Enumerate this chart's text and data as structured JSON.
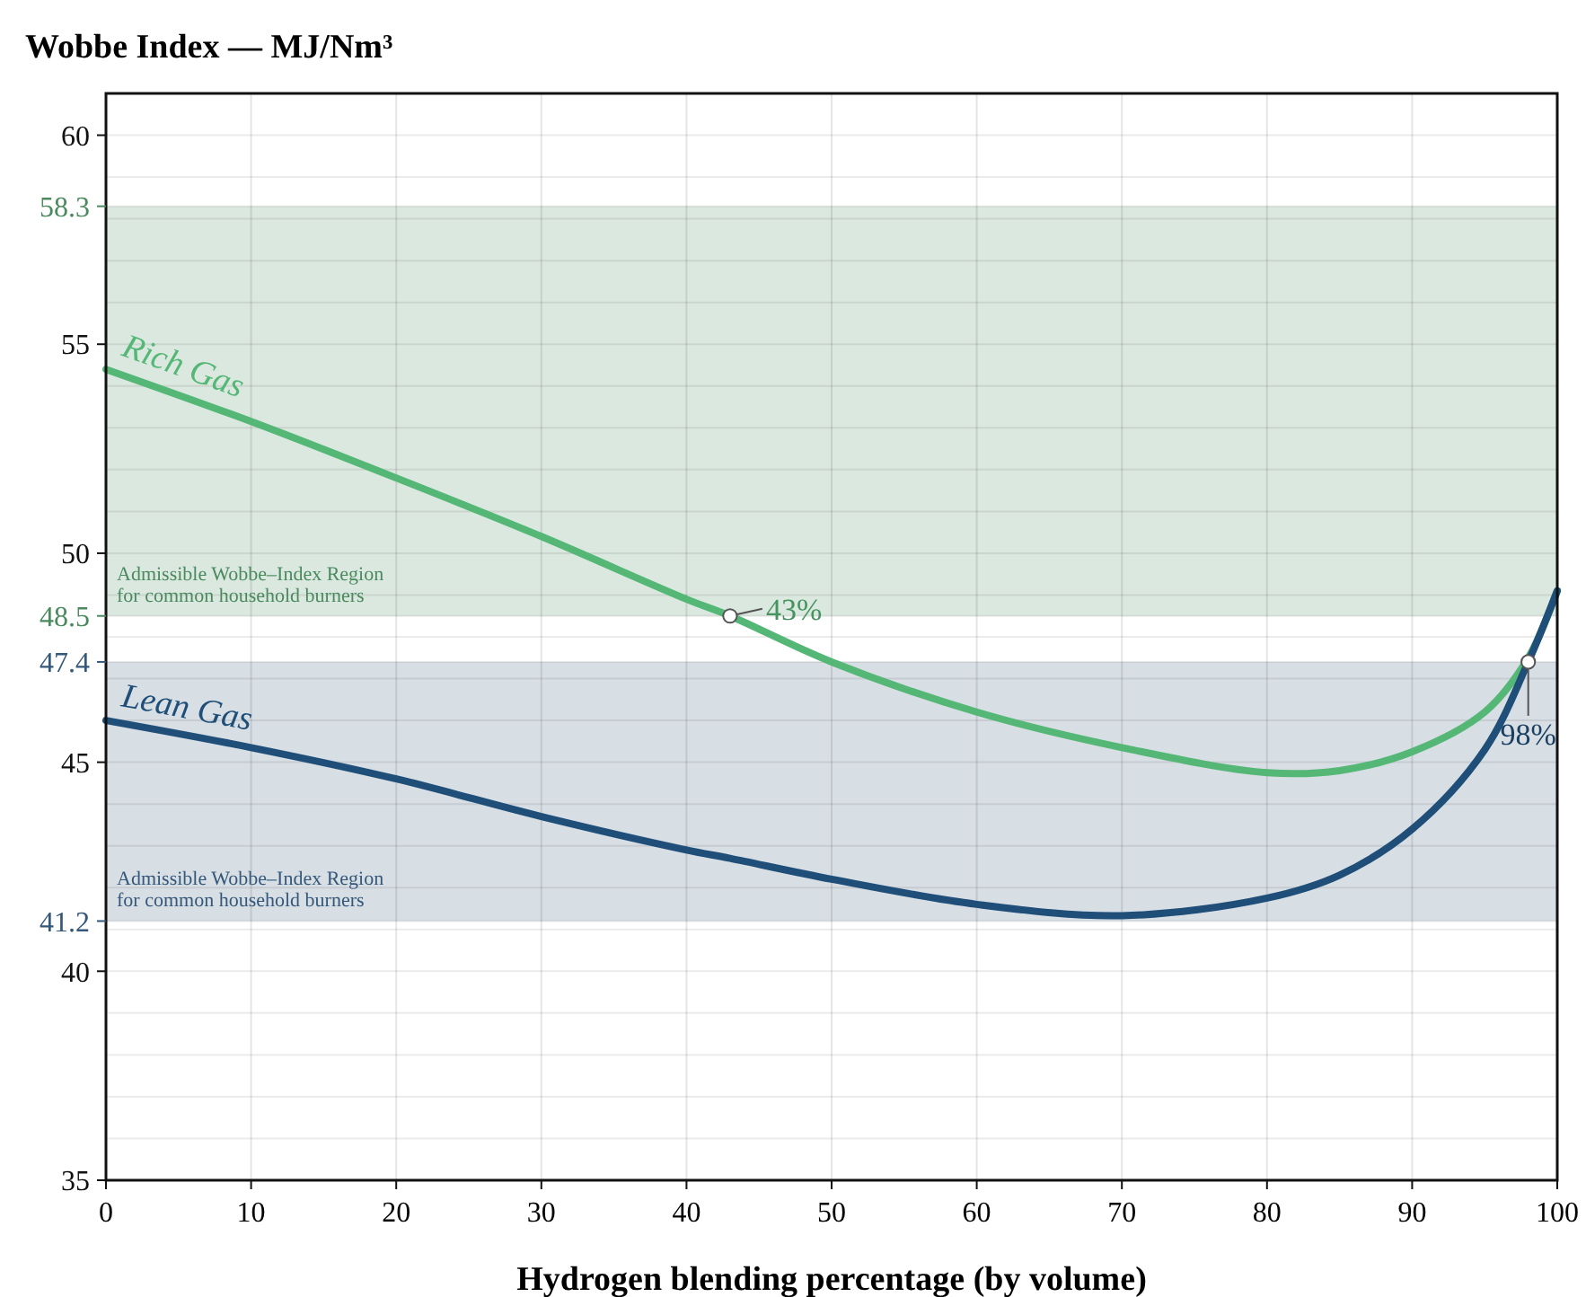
{
  "chart_data": {
    "type": "line",
    "title": "Wobbe Index — MJ/Nm³",
    "xlabel": "Hydrogen blending percentage (by volume)",
    "x": [
      0,
      10,
      20,
      30,
      40,
      43,
      50,
      60,
      70,
      80,
      85,
      90,
      95,
      98,
      100
    ],
    "series": [
      {
        "name": "Rich Gas",
        "color": "#55b776",
        "values": [
          54.4,
          53.15,
          51.8,
          50.4,
          48.9,
          48.5,
          47.4,
          46.2,
          45.35,
          44.75,
          44.8,
          45.25,
          46.2,
          47.5,
          49.1
        ]
      },
      {
        "name": "Lean Gas",
        "color": "#1f4e79",
        "values": [
          46.0,
          45.35,
          44.6,
          43.7,
          42.9,
          42.7,
          42.2,
          41.6,
          41.33,
          41.75,
          42.3,
          43.4,
          45.3,
          47.4,
          49.1
        ]
      }
    ],
    "xlim": [
      0,
      100
    ],
    "xticks": [
      0,
      10,
      20,
      30,
      40,
      50,
      60,
      70,
      80,
      90,
      100
    ],
    "ylim": [
      35,
      61
    ],
    "yticks": [
      35,
      {
        "value": 36,
        "label": null
      },
      {
        "value": 37,
        "label": null
      },
      {
        "value": 38,
        "label": null
      },
      {
        "value": 39,
        "label": null
      },
      40,
      {
        "value": 41,
        "label": null
      },
      41.2,
      {
        "value": 42,
        "label": null
      },
      {
        "value": 43,
        "label": null
      },
      {
        "value": 44,
        "label": null
      },
      45,
      {
        "value": 46,
        "label": null
      },
      {
        "value": 47,
        "label": null
      },
      47.4,
      {
        "value": 48,
        "label": null
      },
      48.5,
      {
        "value": 49,
        "label": null
      },
      50,
      {
        "value": 51,
        "label": null
      },
      {
        "value": 52,
        "label": null
      },
      {
        "value": 53,
        "label": null
      },
      {
        "value": 54,
        "label": null
      },
      55,
      {
        "value": 56,
        "label": null
      },
      {
        "value": 57,
        "label": null
      },
      {
        "value": 58,
        "label": null
      },
      58.3,
      {
        "value": 59,
        "label": null
      },
      60
    ],
    "grid": true,
    "legend": false,
    "marker": "none",
    "line_style": "solid",
    "bands": [
      {
        "axis": "y",
        "from": 48.5,
        "to": 58.3,
        "label": "Admissible Wobbe–Index Region\nfor common household burners",
        "color": "#4a8a5e"
      },
      {
        "axis": "y",
        "from": 41.2,
        "to": 47.4,
        "label": "Admissible Wobbe–Index Region\nfor common household burners",
        "color": "#35587a"
      }
    ],
    "annotations": [
      {
        "text": "43%",
        "x": 43,
        "y": 48.5
      },
      {
        "text": "98%",
        "x": 98,
        "y": 47.4
      }
    ]
  }
}
